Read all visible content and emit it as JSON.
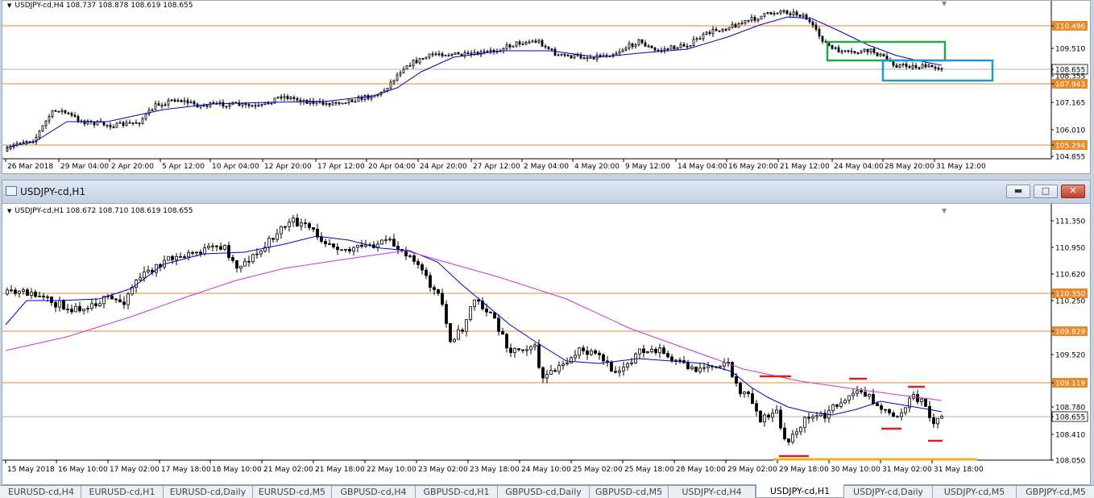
{
  "colors": {
    "ma_fast": "#0000cc",
    "ma_slow": "#cc33cc",
    "level": "#e88a2a",
    "green_box": "#22aa44",
    "blue_box": "#1a9ad6",
    "red_marks": "#e02020",
    "support": "#f0b020"
  },
  "top_chart": {
    "info": "USDJPY-cd,H4  108.737 108.878 108.619 108.655",
    "price_labels": [
      "110.496",
      "109.510",
      "108.655",
      "108.355",
      "107.943",
      "107.165",
      "106.010",
      "105.294",
      "104.855"
    ],
    "time_labels": [
      "26 Mar 2018",
      "29 Mar 04:00",
      "2 Apr 20:00",
      "5 Apr 12:00",
      "10 Apr 04:00",
      "12 Apr 20:00",
      "17 Apr 12:00",
      "20 Apr 04:00",
      "24 Apr 20:00",
      "27 Apr 12:00",
      "2 May 04:00",
      "4 May 20:00",
      "9 May 12:00",
      "14 May 04:00",
      "16 May 20:00",
      "21 May 12:00",
      "24 May 04:00",
      "28 May 20:00",
      "31 May 12:00"
    ]
  },
  "bottom_window": {
    "title": "USDJPY-cd,H1",
    "buttons": {
      "minimize": "▬",
      "restore": "□",
      "close": "✕"
    },
    "info": "USDJPY-cd,H1  108.672 108.710 108.619 108.655",
    "price_labels": [
      "111.350",
      "110.950",
      "110.620",
      "110.350",
      "110.250",
      "109.829",
      "109.520",
      "109.119",
      "108.780",
      "108.655",
      "108.410",
      "108.050"
    ],
    "time_labels": [
      "15 May 2018",
      "16 May 10:00",
      "17 May 02:00",
      "17 May 18:00",
      "18 May 10:00",
      "21 May 02:00",
      "21 May 18:00",
      "22 May 10:00",
      "23 May 02:00",
      "23 May 18:00",
      "24 May 10:00",
      "25 May 02:00",
      "25 May 18:00",
      "28 May 10:00",
      "29 May 02:00",
      "29 May 18:00",
      "30 May 10:00",
      "31 May 02:00",
      "31 May 18:00"
    ]
  },
  "tabs": [
    "EURUSD-cd,H4",
    "EURUSD-cd,H1",
    "EURUSD-cd,Daily",
    "EURUSD-cd,M5",
    "GBPUSD-cd,H4",
    "GBPUSD-cd,H1",
    "GBPUSD-cd,Daily",
    "GBPUSD-cd,M5",
    "USDJPY-cd,H4",
    "USDJPY-cd,H1",
    "USDJPY-cd,Daily",
    "USDJPY-cd,M5",
    "GBPJPY-cd,M5"
  ],
  "active_tab": 9
}
